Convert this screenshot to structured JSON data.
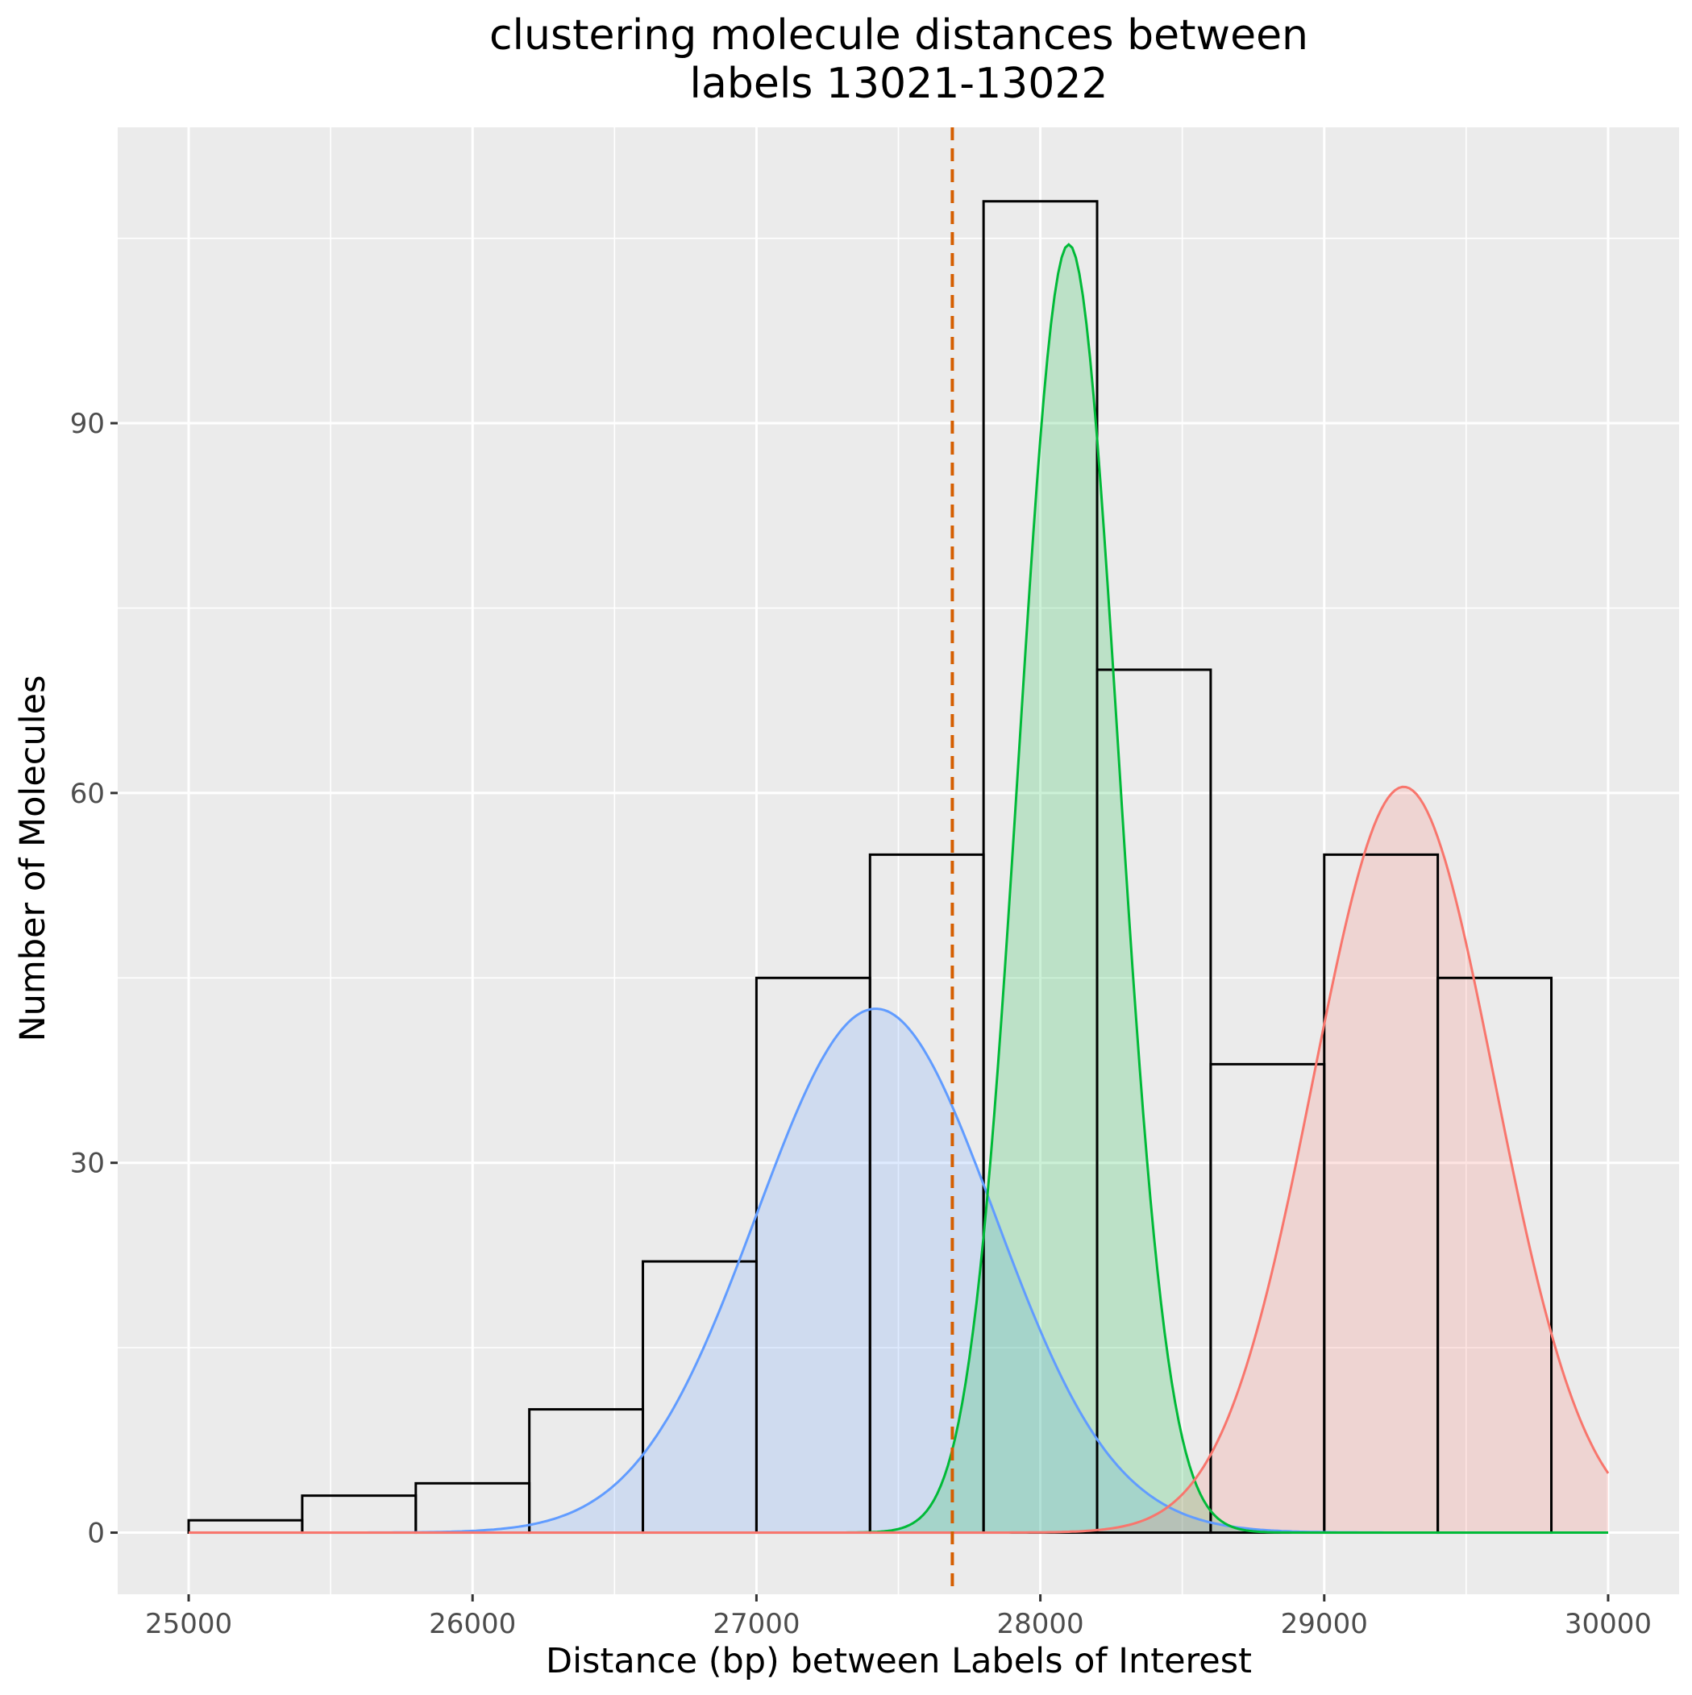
{
  "chart_data": {
    "type": "bar",
    "title_lines": [
      "clustering molecule distances between",
      "labels 13021-13022"
    ],
    "xlabel": "Distance (bp) between Labels of Interest",
    "ylabel": "Number of Molecules",
    "xlim": [
      24750,
      30250
    ],
    "ylim": [
      -5,
      114
    ],
    "x_ticks": [
      25000,
      26000,
      27000,
      28000,
      29000,
      30000
    ],
    "x_minor_ticks": [
      25500,
      26500,
      27500,
      28500,
      29500
    ],
    "y_ticks": [
      0,
      30,
      60,
      90
    ],
    "y_minor_ticks": [
      15,
      45,
      75,
      105
    ],
    "grid": true,
    "background": "#EBEBEB",
    "histogram": {
      "bin_width": 400,
      "bins": [
        {
          "x0": 25000,
          "x1": 25400,
          "count": 1
        },
        {
          "x0": 25400,
          "x1": 25800,
          "count": 3
        },
        {
          "x0": 25800,
          "x1": 26200,
          "count": 4
        },
        {
          "x0": 26200,
          "x1": 26600,
          "count": 10
        },
        {
          "x0": 26600,
          "x1": 27000,
          "count": 22
        },
        {
          "x0": 27000,
          "x1": 27400,
          "count": 45
        },
        {
          "x0": 27400,
          "x1": 27800,
          "count": 55
        },
        {
          "x0": 27800,
          "x1": 28200,
          "count": 108
        },
        {
          "x0": 28200,
          "x1": 28600,
          "count": 70
        },
        {
          "x0": 28600,
          "x1": 29000,
          "count": 38
        },
        {
          "x0": 29000,
          "x1": 29400,
          "count": 55
        },
        {
          "x0": 29400,
          "x1": 29800,
          "count": 45
        }
      ],
      "outline_color": "#000000"
    },
    "curves": [
      {
        "mean": 27420,
        "sd": 420,
        "peak": 42.5,
        "color": "#619CFF"
      },
      {
        "mean": 28100,
        "sd": 175,
        "peak": 104.5,
        "color": "#00BA38"
      },
      {
        "mean": 29280,
        "sd": 320,
        "peak": 60.5,
        "color": "#F8766D"
      }
    ],
    "curve_x_range": [
      25000,
      30000
    ],
    "vline": {
      "x": 27690,
      "color": "#D55E00",
      "style": "dashed"
    }
  }
}
